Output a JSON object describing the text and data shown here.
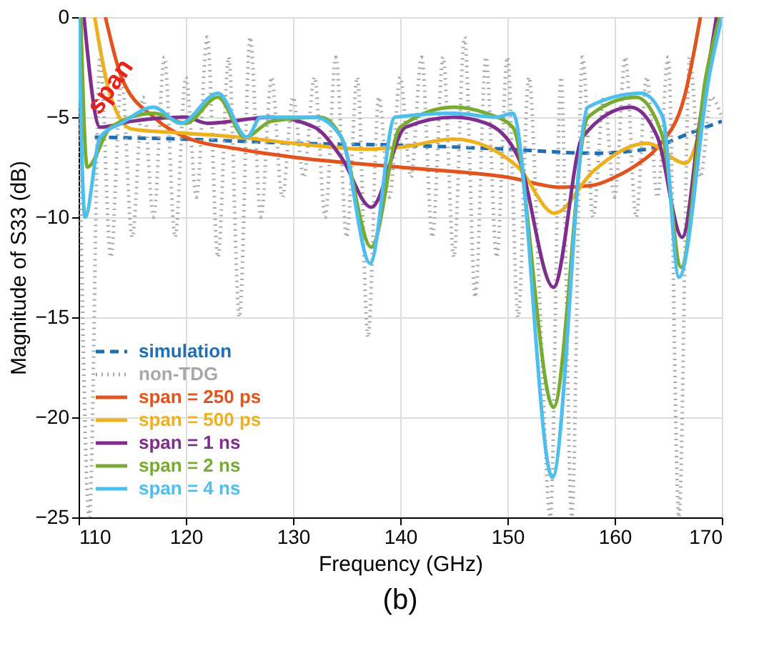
{
  "chart_data": {
    "type": "line",
    "xlabel": "Frequency (GHz)",
    "ylabel": "Magnitude of S33 (dB)",
    "xlim": [
      110,
      170
    ],
    "ylim": [
      -25,
      0
    ],
    "xticks": [
      110,
      120,
      130,
      140,
      150,
      160,
      170
    ],
    "yticks": [
      -25,
      -20,
      -15,
      -10,
      -5,
      0
    ],
    "grid": true,
    "legend": "bottom left",
    "annotations": [
      {
        "text": "span",
        "x": 113,
        "y": -3.5
      },
      "(b)"
    ],
    "series": [
      {
        "name": "simulation",
        "color": "#1f6fb5",
        "line_style": "dashed",
        "x": [
          111.5,
          120,
          130,
          140,
          150,
          158,
          163,
          167,
          170
        ],
        "values": [
          -6,
          -6.1,
          -6.3,
          -6.4,
          -6.6,
          -6.8,
          -6.6,
          -5.8,
          -5.2
        ]
      },
      {
        "name": "non-TDG",
        "color": "#a8a8a8",
        "line_style": "dotted",
        "x": [
          110,
          111,
          112,
          113,
          114,
          115,
          116,
          117,
          118,
          119,
          120,
          121,
          122,
          123,
          124,
          125,
          126,
          127,
          128,
          129,
          130,
          131,
          132,
          133,
          134,
          135,
          136,
          137,
          138,
          139,
          140,
          141,
          142,
          143,
          144,
          145,
          146,
          147,
          148,
          149,
          150,
          151,
          152,
          153,
          154,
          155,
          156,
          157,
          158,
          159,
          160,
          161,
          162,
          163,
          164,
          165,
          166,
          167,
          168,
          169,
          170
        ],
        "values": [
          -3,
          -25,
          -2,
          -12,
          -3,
          -11,
          -4,
          -10,
          -2,
          -11,
          -3,
          -9,
          -1,
          -12,
          -2,
          -15,
          -1,
          -10,
          -3,
          -9,
          -4,
          -8,
          -3,
          -10,
          -2,
          -11,
          -3,
          -16,
          -4,
          -9,
          -3,
          -8,
          -2,
          -11,
          -2,
          -12,
          -1,
          -14,
          -2,
          -12,
          -2,
          -15,
          -3,
          -14,
          -25,
          -3,
          -25,
          -2,
          -10,
          -4,
          -9,
          -2,
          -10,
          -3,
          -9,
          -2,
          -25,
          -2,
          -8,
          -4,
          -5
        ]
      },
      {
        "name": "span = 250 ps",
        "color": "#e2531d",
        "line_style": "solid",
        "x": [
          112.5,
          114,
          117,
          120,
          125,
          130,
          140,
          150,
          155,
          158,
          160,
          162,
          164,
          166.5,
          168
        ],
        "values": [
          0,
          -3,
          -5,
          -6,
          -6.6,
          -7,
          -7.5,
          -8,
          -8.5,
          -8.4,
          -8,
          -7.4,
          -6.5,
          -4,
          0
        ]
      },
      {
        "name": "span = 500 ps",
        "color": "#edb120",
        "line_style": "solid",
        "x": [
          111.5,
          113,
          115,
          120,
          125,
          130,
          137,
          140,
          145,
          151,
          154.4,
          158,
          163,
          166.6,
          168.5,
          169.5
        ],
        "values": [
          0,
          -4,
          -5.6,
          -5.8,
          -6,
          -6.3,
          -6.6,
          -6.5,
          -6.1,
          -7.5,
          -9.8,
          -7.7,
          -6.3,
          -7.3,
          -4,
          0
        ]
      },
      {
        "name": "span = 1 ns",
        "color": "#7e2f8e",
        "line_style": "solid",
        "x": [
          110.5,
          112,
          115,
          120,
          122,
          128,
          132,
          134.5,
          137.3,
          140.5,
          145,
          148,
          151,
          154.3,
          157,
          161.5,
          164,
          166.3,
          168,
          169.5
        ],
        "values": [
          0,
          -5.5,
          -5.2,
          -5,
          -5.3,
          -5,
          -5.5,
          -7,
          -9.5,
          -5.5,
          -5,
          -5.3,
          -7,
          -13.5,
          -6,
          -4.5,
          -6,
          -11,
          -5,
          0
        ]
      },
      {
        "name": "span = 2 ns",
        "color": "#77ac30",
        "line_style": "solid",
        "x": [
          110.2,
          110.8,
          113,
          117,
          120,
          123,
          125.5,
          128,
          132.5,
          134.5,
          137.3,
          140,
          145,
          148,
          150.5,
          154.3,
          157.5,
          162,
          164.5,
          166.2,
          168.5,
          169.8
        ],
        "values": [
          0,
          -7.5,
          -5.5,
          -4.8,
          -5.3,
          -4,
          -6,
          -5.2,
          -5,
          -6,
          -11.5,
          -5.5,
          -4.5,
          -4.8,
          -5.5,
          -19.5,
          -5,
          -4,
          -6,
          -12.5,
          -3,
          0
        ]
      },
      {
        "name": "span = 4 ns",
        "color": "#4dbeee",
        "line_style": "solid",
        "x": [
          110,
          110.6,
          112,
          114,
          117,
          119.5,
          123,
          125.7,
          127,
          132,
          134.5,
          137.2,
          139.5,
          145,
          149,
          150.5,
          154.2,
          157.5,
          162.5,
          164.5,
          166,
          168.8,
          170
        ],
        "values": [
          0,
          -10,
          -6,
          -5.3,
          -4.5,
          -5.3,
          -3.8,
          -6,
          -5,
          -5,
          -6,
          -12.3,
          -5,
          -4.8,
          -5,
          -4.8,
          -23,
          -4.5,
          -3.8,
          -5,
          -13,
          -3,
          0
        ]
      }
    ]
  }
}
